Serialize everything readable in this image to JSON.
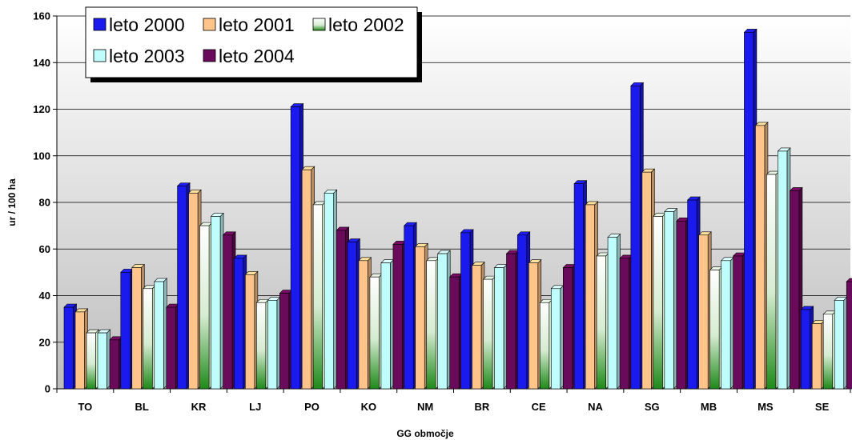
{
  "chart_data": {
    "type": "bar",
    "xlabel": "GG območje",
    "ylabel": "ur / 100 ha",
    "ylim": [
      0,
      160
    ],
    "yticks": [
      0,
      20,
      40,
      60,
      80,
      100,
      120,
      140,
      160
    ],
    "grid": true,
    "legend_position": "top-left",
    "categories": [
      "TO",
      "BL",
      "KR",
      "LJ",
      "PO",
      "KO",
      "NM",
      "BR",
      "CE",
      "NA",
      "SG",
      "MB",
      "MS",
      "SE"
    ],
    "series": [
      {
        "name": "leto 2000",
        "color": "#1a1aee",
        "values": [
          35,
          50,
          87,
          56,
          121,
          63,
          70,
          67,
          66,
          88,
          130,
          81,
          153,
          34
        ]
      },
      {
        "name": "leto 2001",
        "color": "#ffc48a",
        "values": [
          33,
          52,
          84,
          49,
          94,
          55,
          61,
          53,
          54,
          79,
          93,
          66,
          113,
          28
        ]
      },
      {
        "name": "leto 2002",
        "color": "#2e8b1e",
        "values": [
          24,
          43,
          70,
          37,
          79,
          48,
          55,
          47,
          37,
          57,
          74,
          51,
          92,
          32
        ]
      },
      {
        "name": "leto 2003",
        "color": "#bffcfc",
        "values": [
          24,
          46,
          74,
          38,
          84,
          54,
          58,
          52,
          43,
          65,
          76,
          55,
          102,
          38
        ]
      },
      {
        "name": "leto 2004",
        "color": "#6a0a5a",
        "values": [
          21,
          35,
          66,
          41,
          68,
          62,
          48,
          58,
          52,
          56,
          72,
          57,
          85,
          46
        ]
      }
    ]
  }
}
